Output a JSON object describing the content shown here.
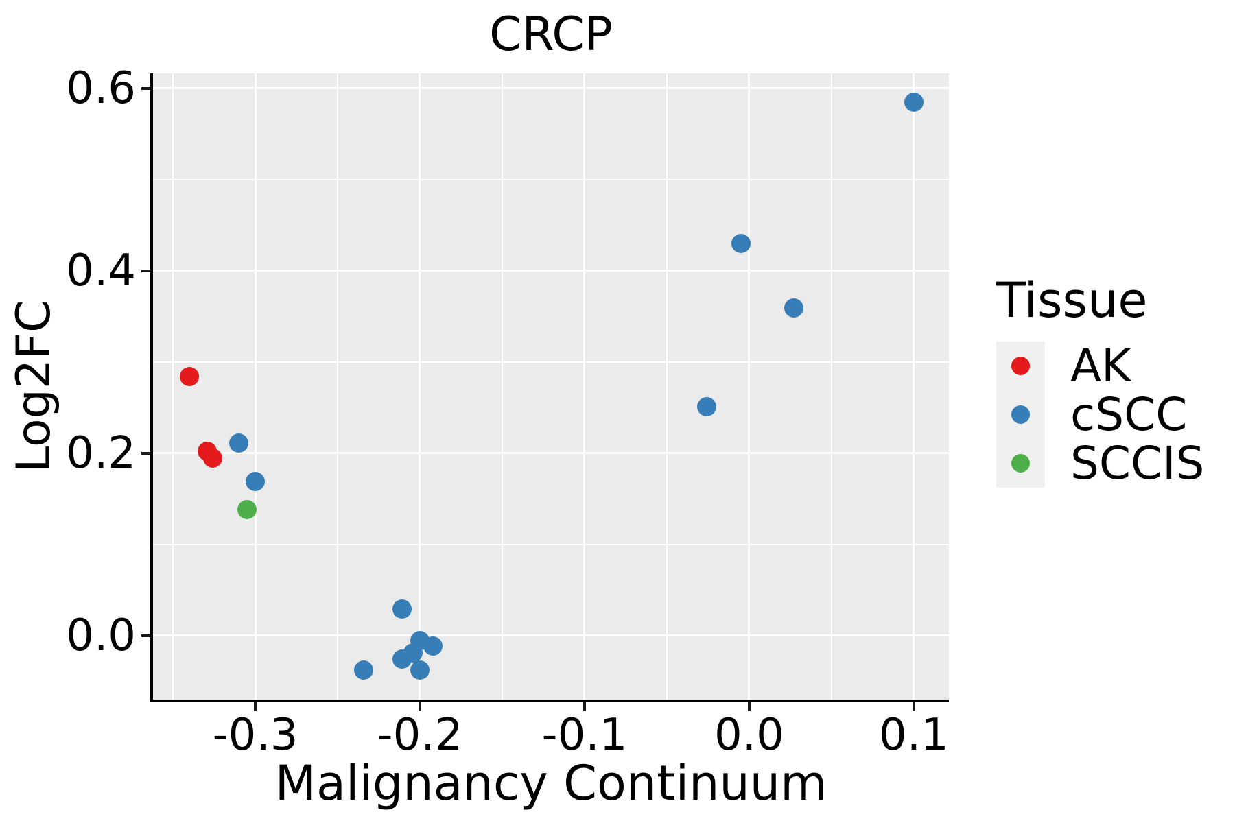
{
  "title": "CRCP",
  "axes": {
    "x": {
      "label": "Malignancy Continuum",
      "tick_values": [
        -0.3,
        -0.2,
        -0.1,
        0.0,
        0.1
      ],
      "tick_labels": [
        "-0.3",
        "-0.2",
        "-0.1",
        "0.0",
        "0.1"
      ],
      "minor_tick_values": [
        -0.35,
        -0.25,
        -0.15,
        -0.05,
        0.05
      ]
    },
    "y": {
      "label": "Log2FC",
      "tick_values": [
        0.0,
        0.2,
        0.4,
        0.6
      ],
      "tick_labels": [
        "0.0",
        "0.2",
        "0.4",
        "0.6"
      ],
      "minor_tick_values": [
        0.1,
        0.3,
        0.5
      ]
    }
  },
  "legend": {
    "title": "Tissue",
    "entries": [
      {
        "label": "AK",
        "color": "#E41A1C"
      },
      {
        "label": "cSCC",
        "color": "#377EB8"
      },
      {
        "label": "SCCIS",
        "color": "#4DAF4A"
      }
    ]
  },
  "colors": {
    "panel_background": "#EBEBEB",
    "gridline": "#FFFFFF",
    "axis_line": "#000000",
    "legend_key_background": "#F0F0F0",
    "ak_red": "#E41A1C",
    "cscc_blue": "#377EB8",
    "sccis_green": "#4DAF4A"
  },
  "chart_data": {
    "type": "scatter",
    "title": "CRCP",
    "xlabel": "Malignancy Continuum",
    "ylabel": "Log2FC",
    "xlim": [
      -0.3621,
      0.1213
    ],
    "ylim": [
      -0.07,
      0.6165
    ],
    "grid": "major-and-minor",
    "legend_position": "right",
    "series": [
      {
        "name": "AK",
        "color": "#E41A1C",
        "points": [
          [
            -0.34,
            0.284
          ],
          [
            -0.329,
            0.202
          ],
          [
            -0.326,
            0.195
          ]
        ]
      },
      {
        "name": "cSCC",
        "color": "#377EB8",
        "points": [
          [
            -0.31,
            0.211
          ],
          [
            -0.3,
            0.169
          ],
          [
            -0.211,
            0.029
          ],
          [
            -0.234,
            -0.038
          ],
          [
            -0.211,
            -0.026
          ],
          [
            -0.204,
            -0.019
          ],
          [
            -0.2,
            -0.005
          ],
          [
            -0.192,
            -0.011
          ],
          [
            -0.2,
            -0.038
          ],
          [
            -0.026,
            0.251
          ],
          [
            -0.005,
            0.43
          ],
          [
            0.027,
            0.359
          ],
          [
            0.1,
            0.585
          ]
        ]
      },
      {
        "name": "SCCIS",
        "color": "#4DAF4A",
        "points": [
          [
            -0.305,
            0.138
          ]
        ]
      }
    ]
  }
}
